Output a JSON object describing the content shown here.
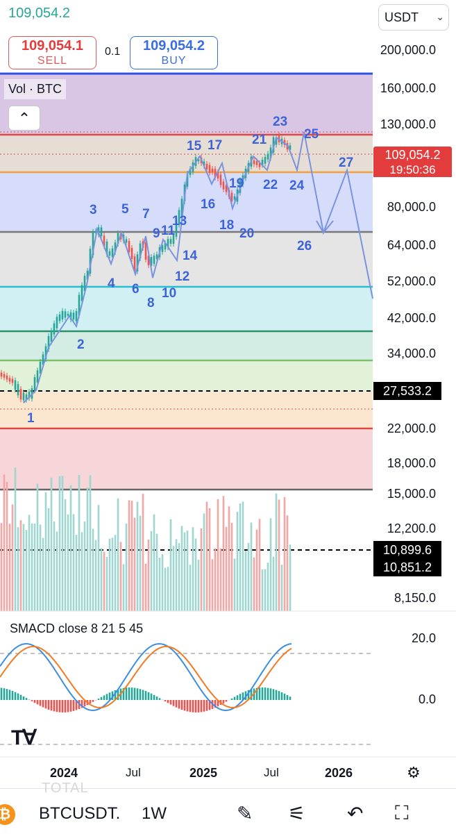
{
  "header": {
    "last_price": "109,054.2",
    "symbol_select": "USDT",
    "sell_price": "109,054.1",
    "sell_label": "SELL",
    "spread": "0.1",
    "buy_price": "109,054.2",
    "buy_label": "BUY"
  },
  "chart": {
    "volume_label": "Vol · BTC",
    "price_axis": [
      "200,000.0",
      "160,000.0",
      "130,000.0",
      "80,000.0",
      "64,000.0",
      "52,000.0",
      "42,000.0",
      "34,000.0",
      "22,000.0",
      "18,000.0",
      "15,000.0",
      "12,200.0",
      "8,150.0"
    ],
    "current_price_tag": "109,054.2",
    "countdown": "19:50:36",
    "level_tag": "27,533.2",
    "volume_tags": [
      "10,899.6",
      "10,851.2"
    ],
    "wave_labels": [
      "1",
      "2",
      "3",
      "4",
      "5",
      "6",
      "7",
      "8",
      "9",
      "10",
      "11",
      "12",
      "13",
      "14",
      "15",
      "16",
      "17",
      "18",
      "19",
      "20",
      "21",
      "22",
      "23",
      "24",
      "25",
      "26",
      "27"
    ],
    "time_axis": [
      "2024",
      "Jul",
      "2025",
      "Jul",
      "2026"
    ],
    "colors": {
      "up": "#26a69a",
      "down": "#ef5350",
      "projection": "#7093e0",
      "wave_label": "#3d63d8",
      "macd_line": "#3d8de0",
      "signal_line": "#f07b22"
    }
  },
  "indicator": {
    "name": "SMACD close 8 21 5 45",
    "axis": [
      "20.0",
      "0.0"
    ]
  },
  "bottom_bar": {
    "ghost_text": "TOTAL",
    "ticker": "BTCUSDT.",
    "interval": "1W",
    "icons": [
      "draw-icon",
      "settings-sliders-icon",
      "undo-icon",
      "fullscreen-icon"
    ]
  }
}
